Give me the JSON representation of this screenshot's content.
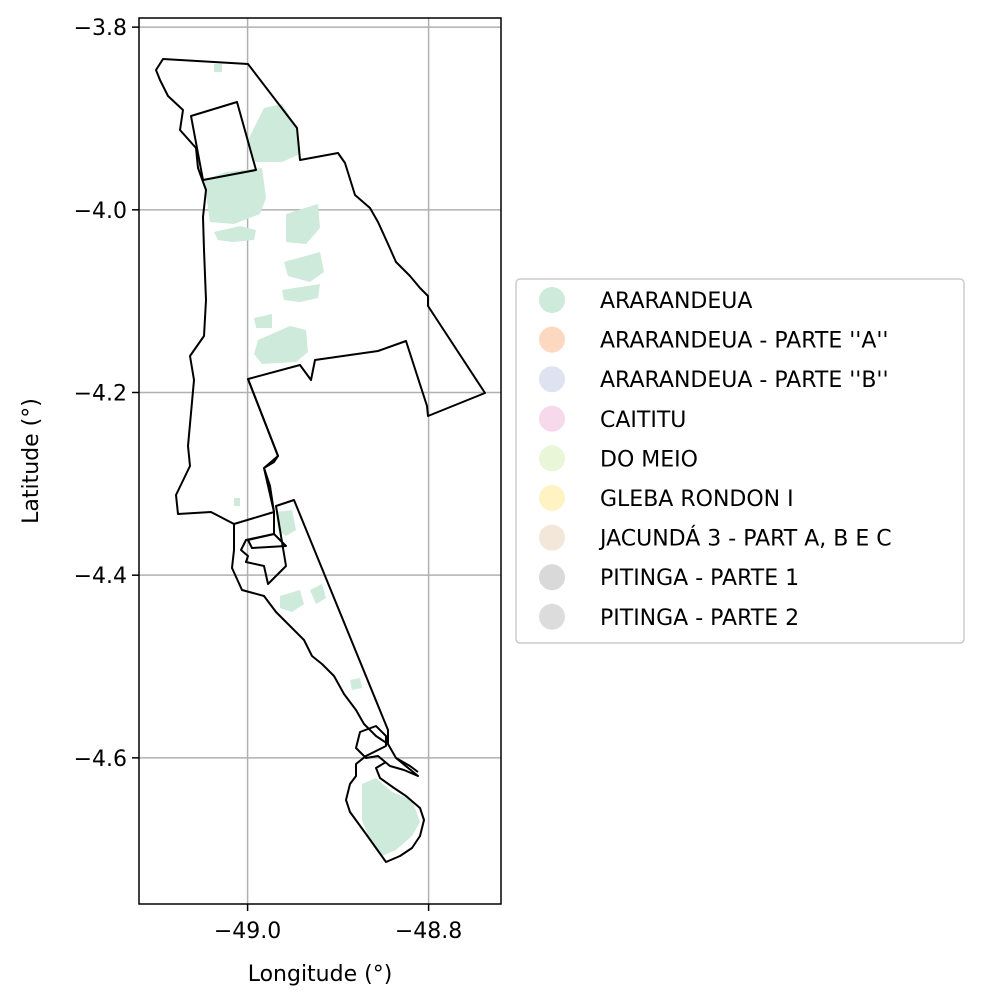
{
  "chart_data": {
    "type": "map",
    "xlabel": "Longitude (°)",
    "ylabel": "Latitude (°)",
    "xlim": [
      -49.12,
      -48.72
    ],
    "ylim": [
      -4.76,
      -3.79
    ],
    "x_ticks": [
      {
        "value": -49.0,
        "label": "−49.0"
      },
      {
        "value": -48.8,
        "label": "−48.8"
      }
    ],
    "y_ticks": [
      {
        "value": -3.8,
        "label": "−3.8"
      },
      {
        "value": -4.0,
        "label": "−4.0"
      },
      {
        "value": -4.2,
        "label": "−4.2"
      },
      {
        "value": -4.4,
        "label": "−4.4"
      },
      {
        "value": -4.6,
        "label": "−4.6"
      }
    ],
    "grid": true,
    "legend_position": "right",
    "legend": [
      {
        "label": "ARARANDEUA",
        "color": "#cdeadb"
      },
      {
        "label": "ARARANDEUA - PARTE ''A''",
        "color": "#fcd8c0"
      },
      {
        "label": "ARARANDEUA - PARTE ''B''",
        "color": "#dfe2f0"
      },
      {
        "label": "CAITITU",
        "color": "#f6d9ea"
      },
      {
        "label": "DO MEIO",
        "color": "#e9f6d8"
      },
      {
        "label": "GLEBA RONDON I",
        "color": "#fff3c4"
      },
      {
        "label": "JACUNDÁ 3 - PART A, B E C",
        "color": "#f3e7d9"
      },
      {
        "label": "PITINGA - PARTE 1",
        "color": "#d9d9d9"
      },
      {
        "label": "PITINGA - PARTE 2",
        "color": "#dcdcdc"
      }
    ],
    "boundary_color": "#000000",
    "fill_color": "#cdeadb"
  }
}
